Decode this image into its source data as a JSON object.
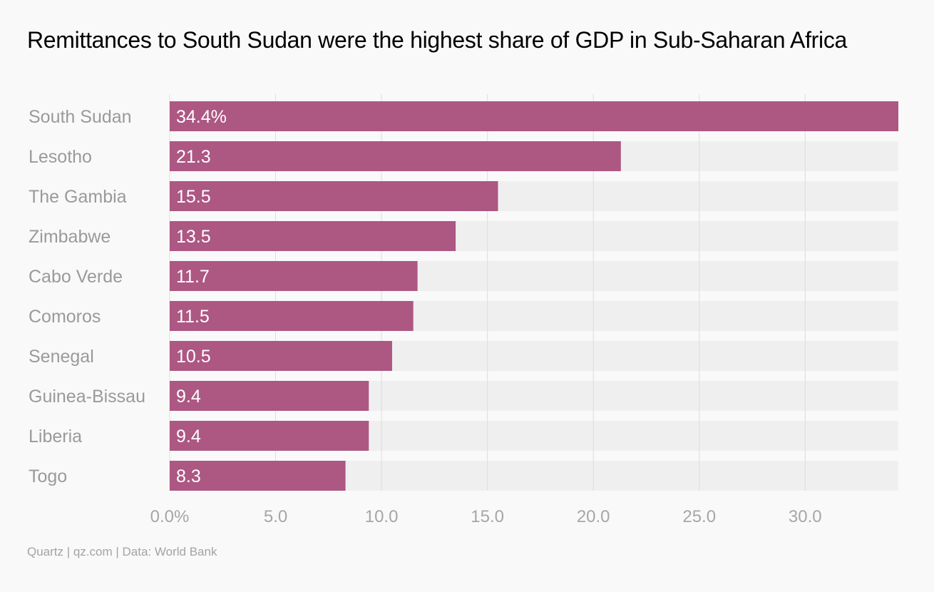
{
  "chart_data": {
    "type": "bar",
    "orientation": "horizontal",
    "title": "Remittances to South Sudan were the highest share of GDP in Sub-Saharan Africa",
    "categories": [
      "South Sudan",
      "Lesotho",
      "The Gambia",
      "Zimbabwe",
      "Cabo Verde",
      "Comoros",
      "Senegal",
      "Guinea-Bissau",
      "Liberia",
      "Togo"
    ],
    "values": [
      34.4,
      21.3,
      15.5,
      13.5,
      11.7,
      11.5,
      10.5,
      9.4,
      9.4,
      8.3
    ],
    "value_labels": [
      "34.4%",
      "21.3",
      "15.5",
      "13.5",
      "11.7",
      "11.5",
      "10.5",
      "9.4",
      "9.4",
      "8.3"
    ],
    "x_ticks": [
      0,
      5,
      10,
      15,
      20,
      25,
      30
    ],
    "x_tick_labels": [
      "0.0%",
      "5.0",
      "10.0",
      "15.0",
      "20.0",
      "25.0",
      "30.0"
    ],
    "xlim": [
      0,
      34.4
    ],
    "xlabel": "",
    "ylabel": "",
    "grid": true,
    "legend": "none",
    "colors": {
      "bar": "#ad5783",
      "track": "#efefef",
      "grid": "#dddddd",
      "category_label": "#9a9a9a",
      "tick_label": "#a6a6a6",
      "value_label": "#ffffff"
    }
  },
  "footer": "Quartz | qz.com | Data: World Bank"
}
